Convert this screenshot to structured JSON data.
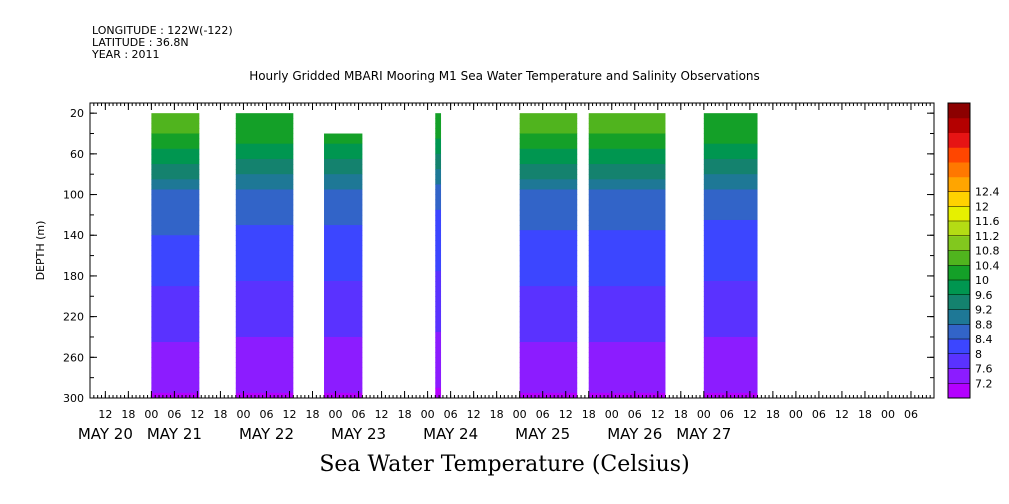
{
  "header": {
    "longitude": "LONGITUDE : 122W(-122)",
    "latitude": "LATITUDE : 36.8N",
    "year": "YEAR : 2011"
  },
  "chart_data": {
    "type": "heatmap",
    "title": "Hourly Gridded MBARI Mooring M1 Sea Water Temperature and Salinity Observations",
    "xlabel": "Sea Water Temperature (Celsius)",
    "ylabel": "DEPTH (m)",
    "y_ticks": [
      20,
      60,
      100,
      140,
      180,
      220,
      260,
      300
    ],
    "ylim": [
      300,
      10
    ],
    "x_hour_ticks": [
      "12",
      "18",
      "00",
      "06",
      "12",
      "18",
      "00",
      "06",
      "12",
      "18",
      "00",
      "06",
      "12",
      "18",
      "00",
      "06",
      "12",
      "18",
      "00",
      "06",
      "12",
      "18",
      "00",
      "06",
      "12",
      "18",
      "00",
      "06",
      "12",
      "18",
      "00",
      "06",
      "12",
      "18",
      "00",
      "06"
    ],
    "x_hour_ticks_hours": [
      -12,
      -6,
      0,
      6,
      12,
      18,
      24,
      30,
      36,
      42,
      48,
      54,
      60,
      66,
      72,
      78,
      84,
      90,
      96,
      102,
      108,
      114,
      120,
      126,
      132,
      138,
      144,
      150,
      156,
      162,
      168,
      174,
      180,
      186,
      192,
      198
    ],
    "x_date_labels": [
      "MAY 20",
      "MAY 21",
      "MAY 22",
      "MAY 23",
      "MAY 24",
      "MAY 25",
      "MAY 26",
      "MAY 27"
    ],
    "x_date_label_hours": [
      -12,
      6,
      30,
      54,
      78,
      102,
      126,
      144
    ],
    "xlim_hours": [
      -16,
      204
    ],
    "colorbar": {
      "levels": [
        7.2,
        7.6,
        8,
        8.4,
        8.8,
        9.2,
        9.6,
        10,
        10.4,
        10.8,
        11.2,
        11.6,
        12,
        12.4
      ],
      "labels": [
        "7.2",
        "7.6",
        "8",
        "8.4",
        "8.8",
        "9.2",
        "9.6",
        "10",
        "10.4",
        "10.8",
        "11.2",
        "11.6",
        "12",
        "12.4"
      ],
      "colors": [
        "#b400ff",
        "#8c1cff",
        "#5a32ff",
        "#3c46ff",
        "#3264c8",
        "#1e7896",
        "#14826e",
        "#009650",
        "#14a028",
        "#50b41e",
        "#82c81e",
        "#b4dc14",
        "#e6f000",
        "#ffd200",
        "#ffa500",
        "#ff7800",
        "#ff4600",
        "#e61414",
        "#b40000",
        "#8c0000"
      ],
      "title": ""
    },
    "data_segments_hours": [
      {
        "start": 0,
        "end": 12.5,
        "top_depth": 20
      },
      {
        "start": 22,
        "end": 37,
        "top_depth": 20
      },
      {
        "start": 45,
        "end": 55,
        "top_depth": 40
      },
      {
        "start": 74,
        "end": 75.5,
        "top_depth": 20
      },
      {
        "start": 96,
        "end": 111,
        "top_depth": 20
      },
      {
        "start": 114,
        "end": 134,
        "top_depth": 20
      },
      {
        "start": 144,
        "end": 158,
        "top_depth": 20
      }
    ]
  }
}
